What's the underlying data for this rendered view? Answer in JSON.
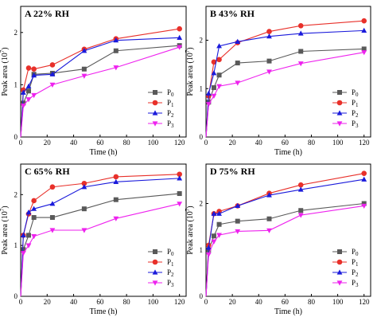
{
  "figure": {
    "y_axis_title": "Peak area (10",
    "y_axis_exponent": "7",
    "y_axis_close": ")",
    "x_axis_title": "Time (h)"
  },
  "colors": {
    "P0": "#595959",
    "P1": "#e8302a",
    "P2": "#1a1adb",
    "P3": "#ee22ee"
  },
  "chart_data": [
    {
      "type": "line",
      "panel": "A",
      "title": "22% RH",
      "xlabel": "Time (h)",
      "ylabel": "Peak area (10^7)",
      "xlim": [
        0,
        125
      ],
      "ylim": [
        0,
        2.5
      ],
      "xticks": [
        0,
        20,
        40,
        60,
        80,
        100,
        120
      ],
      "yticks": [
        0,
        1,
        2
      ],
      "legend_position": "bottom-right",
      "x": [
        0,
        2,
        6,
        10,
        24,
        48,
        72,
        120
      ],
      "series": [
        {
          "name": "P0",
          "sub": "0",
          "marker": "square",
          "values": [
            0,
            0.65,
            0.88,
            1.2,
            1.22,
            1.3,
            1.65,
            1.75
          ]
        },
        {
          "name": "P1",
          "sub": "1",
          "marker": "circle",
          "values": [
            0,
            0.9,
            1.32,
            1.3,
            1.38,
            1.68,
            1.88,
            2.07
          ]
        },
        {
          "name": "P2",
          "sub": "2",
          "marker": "triangle-up",
          "values": [
            0,
            0.85,
            0.97,
            1.18,
            1.2,
            1.65,
            1.85,
            1.9
          ]
        },
        {
          "name": "P3",
          "sub": "3",
          "marker": "triangle-down",
          "values": [
            0,
            0.6,
            0.72,
            0.8,
            1.0,
            1.17,
            1.33,
            1.72
          ]
        }
      ]
    },
    {
      "type": "line",
      "panel": "B",
      "title": "43% RH",
      "xlabel": "Time (h)",
      "ylabel": "Peak area (10^7)",
      "xlim": [
        0,
        125
      ],
      "ylim": [
        0,
        2.7
      ],
      "xticks": [
        0,
        20,
        40,
        60,
        80,
        100,
        120
      ],
      "yticks": [
        0,
        1,
        2
      ],
      "legend_position": "bottom-right",
      "x": [
        0,
        2,
        6,
        10,
        24,
        48,
        72,
        120
      ],
      "series": [
        {
          "name": "P0",
          "sub": "0",
          "marker": "square",
          "values": [
            0,
            0.72,
            1.02,
            1.28,
            1.53,
            1.57,
            1.77,
            1.82
          ]
        },
        {
          "name": "P1",
          "sub": "1",
          "marker": "circle",
          "values": [
            0,
            0.85,
            1.55,
            1.6,
            1.95,
            2.18,
            2.3,
            2.4
          ]
        },
        {
          "name": "P2",
          "sub": "2",
          "marker": "triangle-up",
          "values": [
            0,
            0.9,
            1.32,
            1.88,
            1.97,
            2.08,
            2.14,
            2.2
          ]
        },
        {
          "name": "P3",
          "sub": "3",
          "marker": "triangle-down",
          "values": [
            0,
            0.68,
            0.85,
            1.05,
            1.12,
            1.35,
            1.52,
            1.75
          ]
        }
      ]
    },
    {
      "type": "line",
      "panel": "C",
      "title": "65% RH",
      "xlabel": "Time (h)",
      "ylabel": "Peak area (10^7)",
      "xlim": [
        0,
        125
      ],
      "ylim": [
        0,
        2.6
      ],
      "xticks": [
        0,
        20,
        40,
        60,
        80,
        100,
        120
      ],
      "yticks": [
        0,
        1,
        2
      ],
      "legend_position": "bottom-right",
      "x": [
        0,
        2,
        6,
        10,
        24,
        48,
        72,
        120
      ],
      "series": [
        {
          "name": "P0",
          "sub": "0",
          "marker": "square",
          "values": [
            0,
            0.92,
            1.2,
            1.55,
            1.55,
            1.72,
            1.9,
            2.02
          ]
        },
        {
          "name": "P1",
          "sub": "1",
          "marker": "circle",
          "values": [
            0,
            1.2,
            1.62,
            1.88,
            2.15,
            2.22,
            2.35,
            2.4
          ]
        },
        {
          "name": "P2",
          "sub": "2",
          "marker": "triangle-up",
          "values": [
            0,
            1.2,
            1.65,
            1.72,
            1.82,
            2.15,
            2.25,
            2.32
          ]
        },
        {
          "name": "P3",
          "sub": "3",
          "marker": "triangle-down",
          "values": [
            0,
            0.85,
            1.0,
            1.18,
            1.3,
            1.3,
            1.53,
            1.82
          ]
        }
      ]
    },
    {
      "type": "line",
      "panel": "D",
      "title": "75% RH",
      "xlabel": "Time (h)",
      "ylabel": "Peak area (10^7)",
      "xlim": [
        0,
        125
      ],
      "ylim": [
        0,
        2.85
      ],
      "xticks": [
        0,
        20,
        40,
        60,
        80,
        100,
        120
      ],
      "yticks": [
        0,
        1,
        2
      ],
      "legend_position": "bottom-right",
      "x": [
        0,
        2,
        6,
        10,
        24,
        48,
        72,
        120
      ],
      "series": [
        {
          "name": "P0",
          "sub": "0",
          "marker": "square",
          "values": [
            0,
            1.0,
            1.3,
            1.55,
            1.62,
            1.67,
            1.85,
            2.0
          ]
        },
        {
          "name": "P1",
          "sub": "1",
          "marker": "circle",
          "values": [
            0,
            1.1,
            1.78,
            1.83,
            1.95,
            2.22,
            2.4,
            2.65
          ]
        },
        {
          "name": "P2",
          "sub": "2",
          "marker": "triangle-up",
          "values": [
            0,
            1.05,
            1.78,
            1.78,
            1.95,
            2.18,
            2.3,
            2.52
          ]
        },
        {
          "name": "P3",
          "sub": "3",
          "marker": "triangle-down",
          "values": [
            0,
            0.9,
            1.18,
            1.32,
            1.4,
            1.42,
            1.75,
            1.95
          ]
        }
      ]
    }
  ]
}
